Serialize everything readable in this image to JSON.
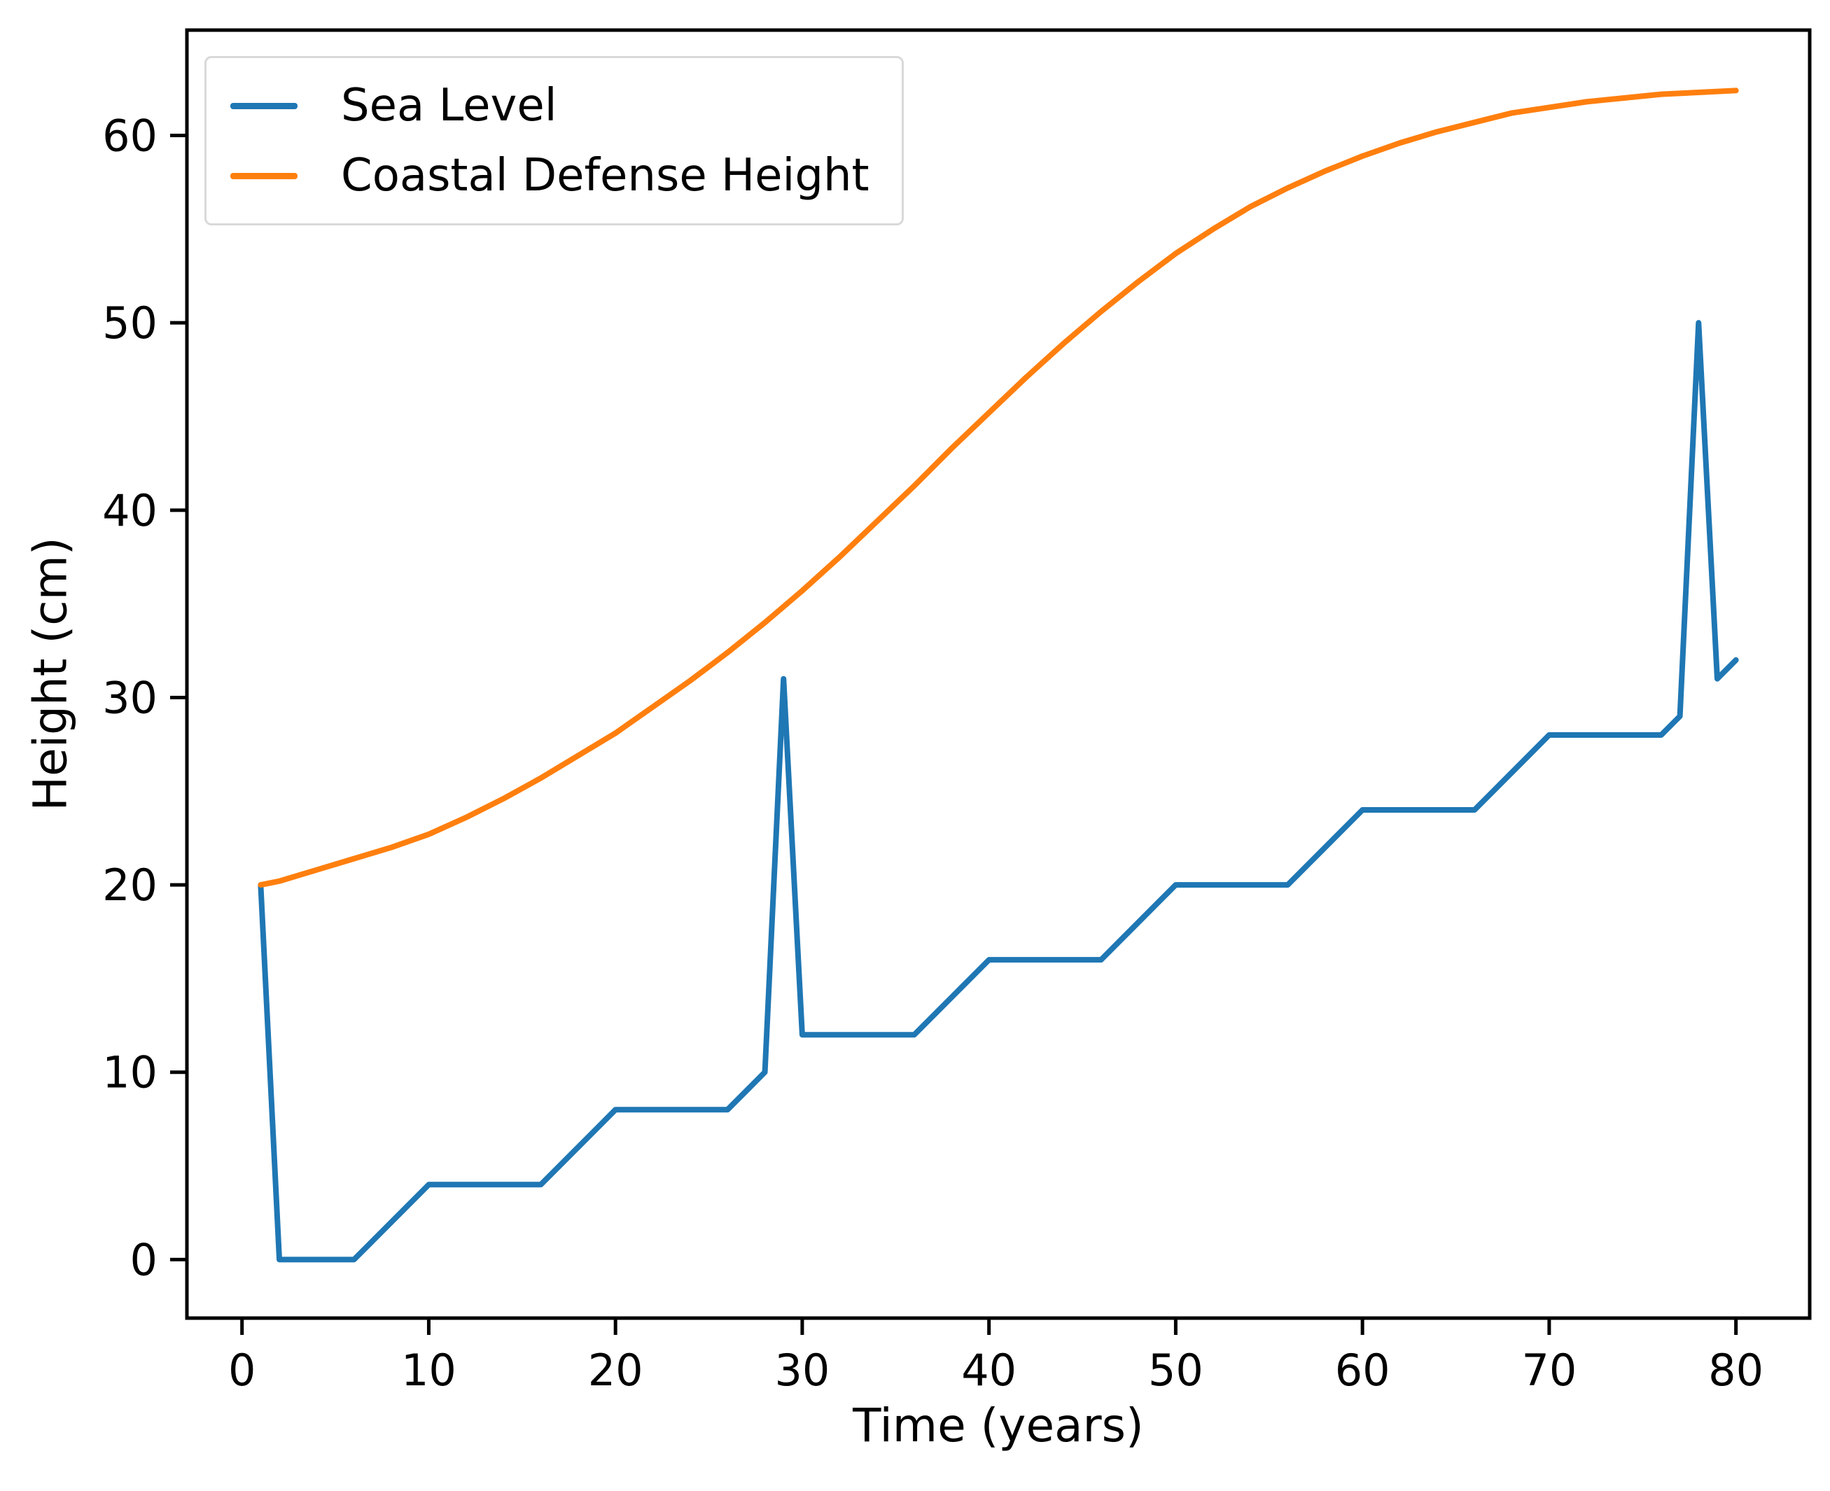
{
  "chart_data": {
    "type": "line",
    "title": "",
    "xlabel": "Time (years)",
    "ylabel": "Height (cm)",
    "xlim": [
      -2.95,
      83.95
    ],
    "ylim": [
      -3.125,
      65.625
    ],
    "x_ticks": [
      0,
      10,
      20,
      30,
      40,
      50,
      60,
      70,
      80
    ],
    "y_ticks": [
      0,
      10,
      20,
      30,
      40,
      50,
      60
    ],
    "grid": false,
    "legend_position": "upper-left",
    "series": [
      {
        "name": "Sea Level",
        "color": "#1f77b4",
        "points": [
          [
            1,
            20
          ],
          [
            2,
            0
          ],
          [
            3,
            0
          ],
          [
            4,
            0
          ],
          [
            5,
            0
          ],
          [
            6,
            0
          ],
          [
            7,
            1
          ],
          [
            8,
            2
          ],
          [
            9,
            3
          ],
          [
            10,
            4
          ],
          [
            11,
            4
          ],
          [
            12,
            4
          ],
          [
            13,
            4
          ],
          [
            14,
            4
          ],
          [
            15,
            4
          ],
          [
            16,
            4
          ],
          [
            17,
            5
          ],
          [
            18,
            6
          ],
          [
            19,
            7
          ],
          [
            20,
            8
          ],
          [
            21,
            8
          ],
          [
            22,
            8
          ],
          [
            23,
            8
          ],
          [
            24,
            8
          ],
          [
            25,
            8
          ],
          [
            26,
            8
          ],
          [
            27,
            9
          ],
          [
            28,
            10
          ],
          [
            29,
            31
          ],
          [
            30,
            12
          ],
          [
            31,
            12
          ],
          [
            32,
            12
          ],
          [
            33,
            12
          ],
          [
            34,
            12
          ],
          [
            35,
            12
          ],
          [
            36,
            12
          ],
          [
            37,
            13
          ],
          [
            38,
            14
          ],
          [
            39,
            15
          ],
          [
            40,
            16
          ],
          [
            41,
            16
          ],
          [
            42,
            16
          ],
          [
            43,
            16
          ],
          [
            44,
            16
          ],
          [
            45,
            16
          ],
          [
            46,
            16
          ],
          [
            47,
            17
          ],
          [
            48,
            18
          ],
          [
            49,
            19
          ],
          [
            50,
            20
          ],
          [
            51,
            20
          ],
          [
            52,
            20
          ],
          [
            53,
            20
          ],
          [
            54,
            20
          ],
          [
            55,
            20
          ],
          [
            56,
            20
          ],
          [
            57,
            21
          ],
          [
            58,
            22
          ],
          [
            59,
            23
          ],
          [
            60,
            24
          ],
          [
            61,
            24
          ],
          [
            62,
            24
          ],
          [
            63,
            24
          ],
          [
            64,
            24
          ],
          [
            65,
            24
          ],
          [
            66,
            24
          ],
          [
            67,
            25
          ],
          [
            68,
            26
          ],
          [
            69,
            27
          ],
          [
            70,
            28
          ],
          [
            71,
            28
          ],
          [
            72,
            28
          ],
          [
            73,
            28
          ],
          [
            74,
            28
          ],
          [
            75,
            28
          ],
          [
            76,
            28
          ],
          [
            77,
            29
          ],
          [
            78,
            50
          ],
          [
            79,
            31
          ],
          [
            80,
            32
          ]
        ]
      },
      {
        "name": "Coastal Defense Height",
        "color": "#ff7f0e",
        "points": [
          [
            1,
            20.0
          ],
          [
            2,
            20.2
          ],
          [
            4,
            20.8
          ],
          [
            6,
            21.4
          ],
          [
            8,
            22.0
          ],
          [
            10,
            22.7
          ],
          [
            12,
            23.6
          ],
          [
            14,
            24.6
          ],
          [
            16,
            25.7
          ],
          [
            18,
            26.9
          ],
          [
            20,
            28.1
          ],
          [
            22,
            29.5
          ],
          [
            24,
            30.9
          ],
          [
            26,
            32.4
          ],
          [
            28,
            34.0
          ],
          [
            30,
            35.7
          ],
          [
            32,
            37.5
          ],
          [
            34,
            39.4
          ],
          [
            36,
            41.3
          ],
          [
            38,
            43.3
          ],
          [
            40,
            45.2
          ],
          [
            42,
            47.1
          ],
          [
            44,
            48.9
          ],
          [
            46,
            50.6
          ],
          [
            48,
            52.2
          ],
          [
            50,
            53.7
          ],
          [
            52,
            55.0
          ],
          [
            54,
            56.2
          ],
          [
            56,
            57.2
          ],
          [
            58,
            58.1
          ],
          [
            60,
            58.9
          ],
          [
            62,
            59.6
          ],
          [
            64,
            60.2
          ],
          [
            66,
            60.7
          ],
          [
            68,
            61.2
          ],
          [
            70,
            61.5
          ],
          [
            72,
            61.8
          ],
          [
            74,
            62.0
          ],
          [
            76,
            62.2
          ],
          [
            78,
            62.3
          ],
          [
            80,
            62.4
          ]
        ]
      }
    ]
  }
}
